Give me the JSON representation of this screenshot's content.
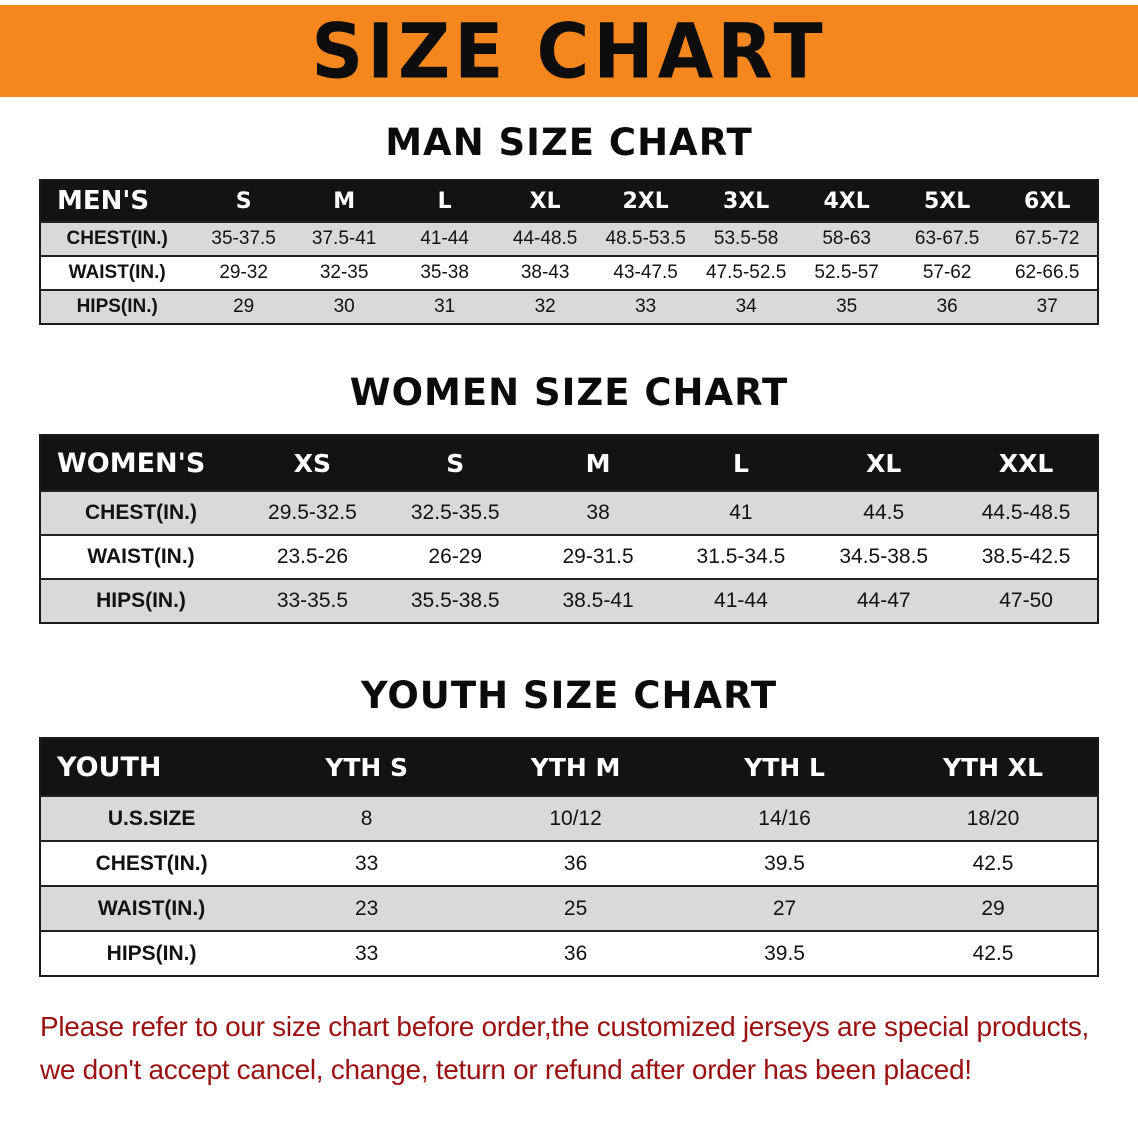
{
  "banner": {
    "title": "SIZE CHART"
  },
  "colors": {
    "banner_bg": "#f6871f",
    "table_header_bg": "#131313",
    "row_shade": "#d9d9d9",
    "disclaimer_text": "#9b1010"
  },
  "sections": [
    {
      "id": "men",
      "heading": "MAN SIZE CHART",
      "table": {
        "header": [
          "MEN'S",
          "S",
          "M",
          "L",
          "XL",
          "2XL",
          "3XL",
          "4XL",
          "5XL",
          "6XL"
        ],
        "rows": [
          {
            "label": "CHEST(IN.)",
            "values": [
              "35-37.5",
              "37.5-41",
              "41-44",
              "44-48.5",
              "48.5-53.5",
              "53.5-58",
              "58-63",
              "63-67.5",
              "67.5-72"
            ]
          },
          {
            "label": "WAIST(IN.)",
            "values": [
              "29-32",
              "32-35",
              "35-38",
              "38-43",
              "43-47.5",
              "47.5-52.5",
              "52.5-57",
              "57-62",
              "62-66.5"
            ]
          },
          {
            "label": "HIPS(IN.)",
            "values": [
              "29",
              "30",
              "31",
              "32",
              "33",
              "34",
              "35",
              "36",
              "37"
            ]
          }
        ]
      }
    },
    {
      "id": "women",
      "heading": "WOMEN SIZE CHART",
      "table": {
        "header": [
          "WOMEN'S",
          "XS",
          "S",
          "M",
          "L",
          "XL",
          "XXL"
        ],
        "rows": [
          {
            "label": "CHEST(IN.)",
            "values": [
              "29.5-32.5",
              "32.5-35.5",
              "38",
              "41",
              "44.5",
              "44.5-48.5"
            ]
          },
          {
            "label": "WAIST(IN.)",
            "values": [
              "23.5-26",
              "26-29",
              "29-31.5",
              "31.5-34.5",
              "34.5-38.5",
              "38.5-42.5"
            ]
          },
          {
            "label": "HIPS(IN.)",
            "values": [
              "33-35.5",
              "35.5-38.5",
              "38.5-41",
              "41-44",
              "44-47",
              "47-50"
            ]
          }
        ]
      }
    },
    {
      "id": "youth",
      "heading": "YOUTH SIZE CHART",
      "table": {
        "header": [
          "YOUTH",
          "YTH S",
          "YTH M",
          "YTH L",
          "YTH XL"
        ],
        "rows": [
          {
            "label": "U.S.SIZE",
            "values": [
              "8",
              "10/12",
              "14/16",
              "18/20"
            ]
          },
          {
            "label": "CHEST(IN.)",
            "values": [
              "33",
              "36",
              "39.5",
              "42.5"
            ]
          },
          {
            "label": "WAIST(IN.)",
            "values": [
              "23",
              "25",
              "27",
              "29"
            ]
          },
          {
            "label": "HIPS(IN.)",
            "values": [
              "33",
              "36",
              "39.5",
              "42.5"
            ]
          }
        ]
      }
    }
  ],
  "disclaimer": {
    "lines": [
      "Please refer to our size chart before order,the customized jerseys are special products,",
      "we don't accept cancel, change, teturn or refund after order has been placed!"
    ]
  }
}
